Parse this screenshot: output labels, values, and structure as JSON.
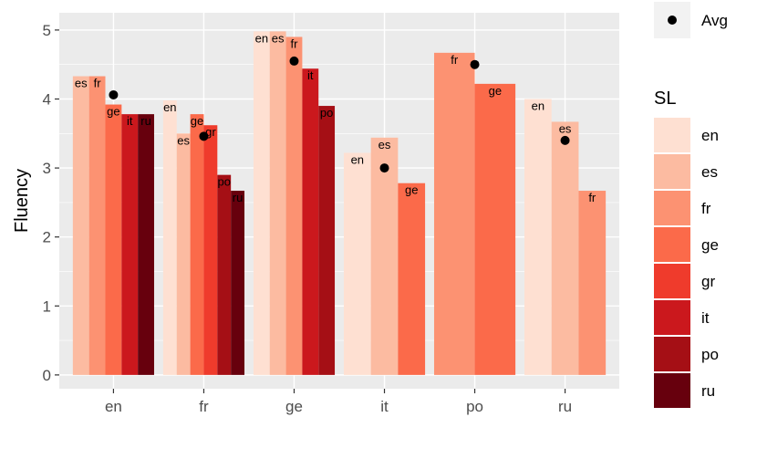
{
  "chart_data": {
    "type": "bar",
    "ylabel": "Fluency",
    "xlabel": "",
    "ylim": [
      -0.2,
      5.25
    ],
    "yticks": [
      0,
      1,
      2,
      3,
      4,
      5
    ],
    "grid": true,
    "categories": [
      "en",
      "fr",
      "ge",
      "it",
      "po",
      "ru"
    ],
    "groups": [
      {
        "category": "en",
        "avg": 4.06,
        "bars": [
          {
            "sl": "es",
            "value": 4.33
          },
          {
            "sl": "fr",
            "value": 4.33
          },
          {
            "sl": "ge",
            "value": 3.92
          },
          {
            "sl": "it",
            "value": 3.78
          },
          {
            "sl": "ru",
            "value": 3.78
          }
        ]
      },
      {
        "category": "fr",
        "avg": 3.46,
        "bars": [
          {
            "sl": "en",
            "value": 3.98
          },
          {
            "sl": "es",
            "value": 3.5
          },
          {
            "sl": "ge",
            "value": 3.78
          },
          {
            "sl": "gr",
            "value": 3.62
          },
          {
            "sl": "po",
            "value": 2.9
          },
          {
            "sl": "ru",
            "value": 2.67
          }
        ]
      },
      {
        "category": "ge",
        "avg": 4.55,
        "bars": [
          {
            "sl": "en",
            "value": 4.98
          },
          {
            "sl": "es",
            "value": 4.98
          },
          {
            "sl": "fr",
            "value": 4.9
          },
          {
            "sl": "it",
            "value": 4.44
          },
          {
            "sl": "po",
            "value": 3.9
          }
        ]
      },
      {
        "category": "it",
        "avg": 3.0,
        "bars": [
          {
            "sl": "en",
            "value": 3.22
          },
          {
            "sl": "es",
            "value": 3.44
          },
          {
            "sl": "ge",
            "value": 2.78
          }
        ]
      },
      {
        "category": "po",
        "avg": 4.5,
        "bars": [
          {
            "sl": "fr",
            "value": 4.67
          },
          {
            "sl": "ge",
            "value": 4.22
          }
        ]
      },
      {
        "category": "ru",
        "avg": 3.4,
        "bars": [
          {
            "sl": "en",
            "value": 4.0
          },
          {
            "sl": "es",
            "value": 3.67
          },
          {
            "sl": "fr",
            "value": 2.67
          }
        ]
      }
    ],
    "legend": {
      "avg_label": "Avg",
      "title": "SL",
      "placement": "right",
      "items": [
        {
          "label": "en",
          "color": "#FEE0D2"
        },
        {
          "label": "es",
          "color": "#FCBBA1"
        },
        {
          "label": "fr",
          "color": "#FC9272"
        },
        {
          "label": "ge",
          "color": "#FB6A4A"
        },
        {
          "label": "gr",
          "color": "#EF3B2C"
        },
        {
          "label": "it",
          "color": "#CB181D"
        },
        {
          "label": "po",
          "color": "#A50F15"
        },
        {
          "label": "ru",
          "color": "#67000D"
        }
      ]
    }
  }
}
